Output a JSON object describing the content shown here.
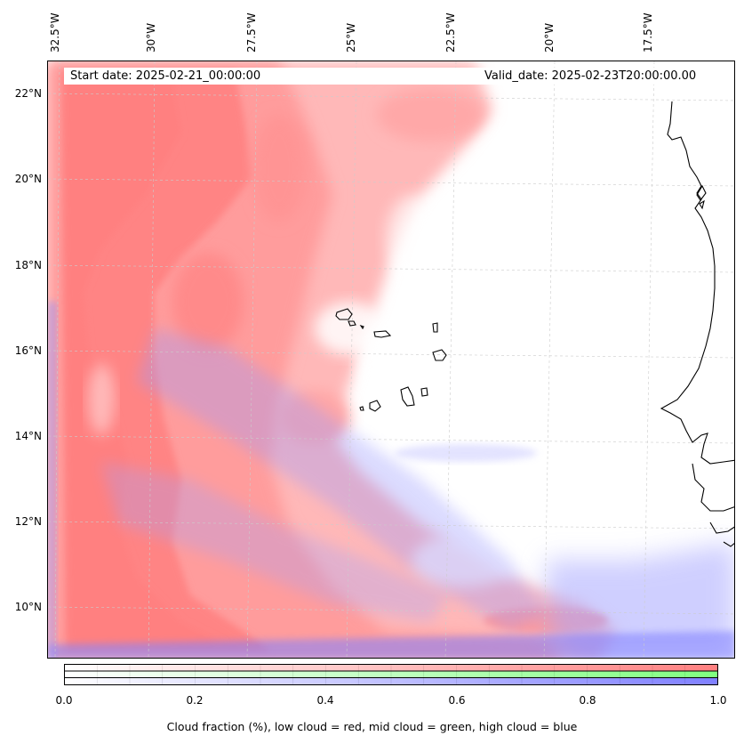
{
  "map": {
    "lon_labels": [
      "32.5°W",
      "30°W",
      "27.5°W",
      "25°W",
      "22.5°W",
      "20°W",
      "17.5°W"
    ],
    "lat_labels": [
      "22°N",
      "20°N",
      "18°N",
      "16°N",
      "14°N",
      "12°N",
      "10°N"
    ],
    "start_date": "Start date: 2025-02-21_00:00:00",
    "valid_date": "Valid_date: 2025-02-23T20:00:00.00",
    "colors": {
      "low_cloud": "#ff8080",
      "mid_cloud": "#80ff80",
      "high_cloud": "#8080ff",
      "coastline": "#000000",
      "gridline": "#cccccc"
    }
  },
  "colorbar": {
    "ticks": [
      "0.0",
      "0.2",
      "0.4",
      "0.6",
      "0.8",
      "1.0"
    ],
    "tick_values": [
      0.0,
      0.2,
      0.4,
      0.6,
      0.8,
      1.0
    ],
    "caption": "Cloud fraction (%), low cloud = red, mid cloud = green, high cloud = blue"
  }
}
